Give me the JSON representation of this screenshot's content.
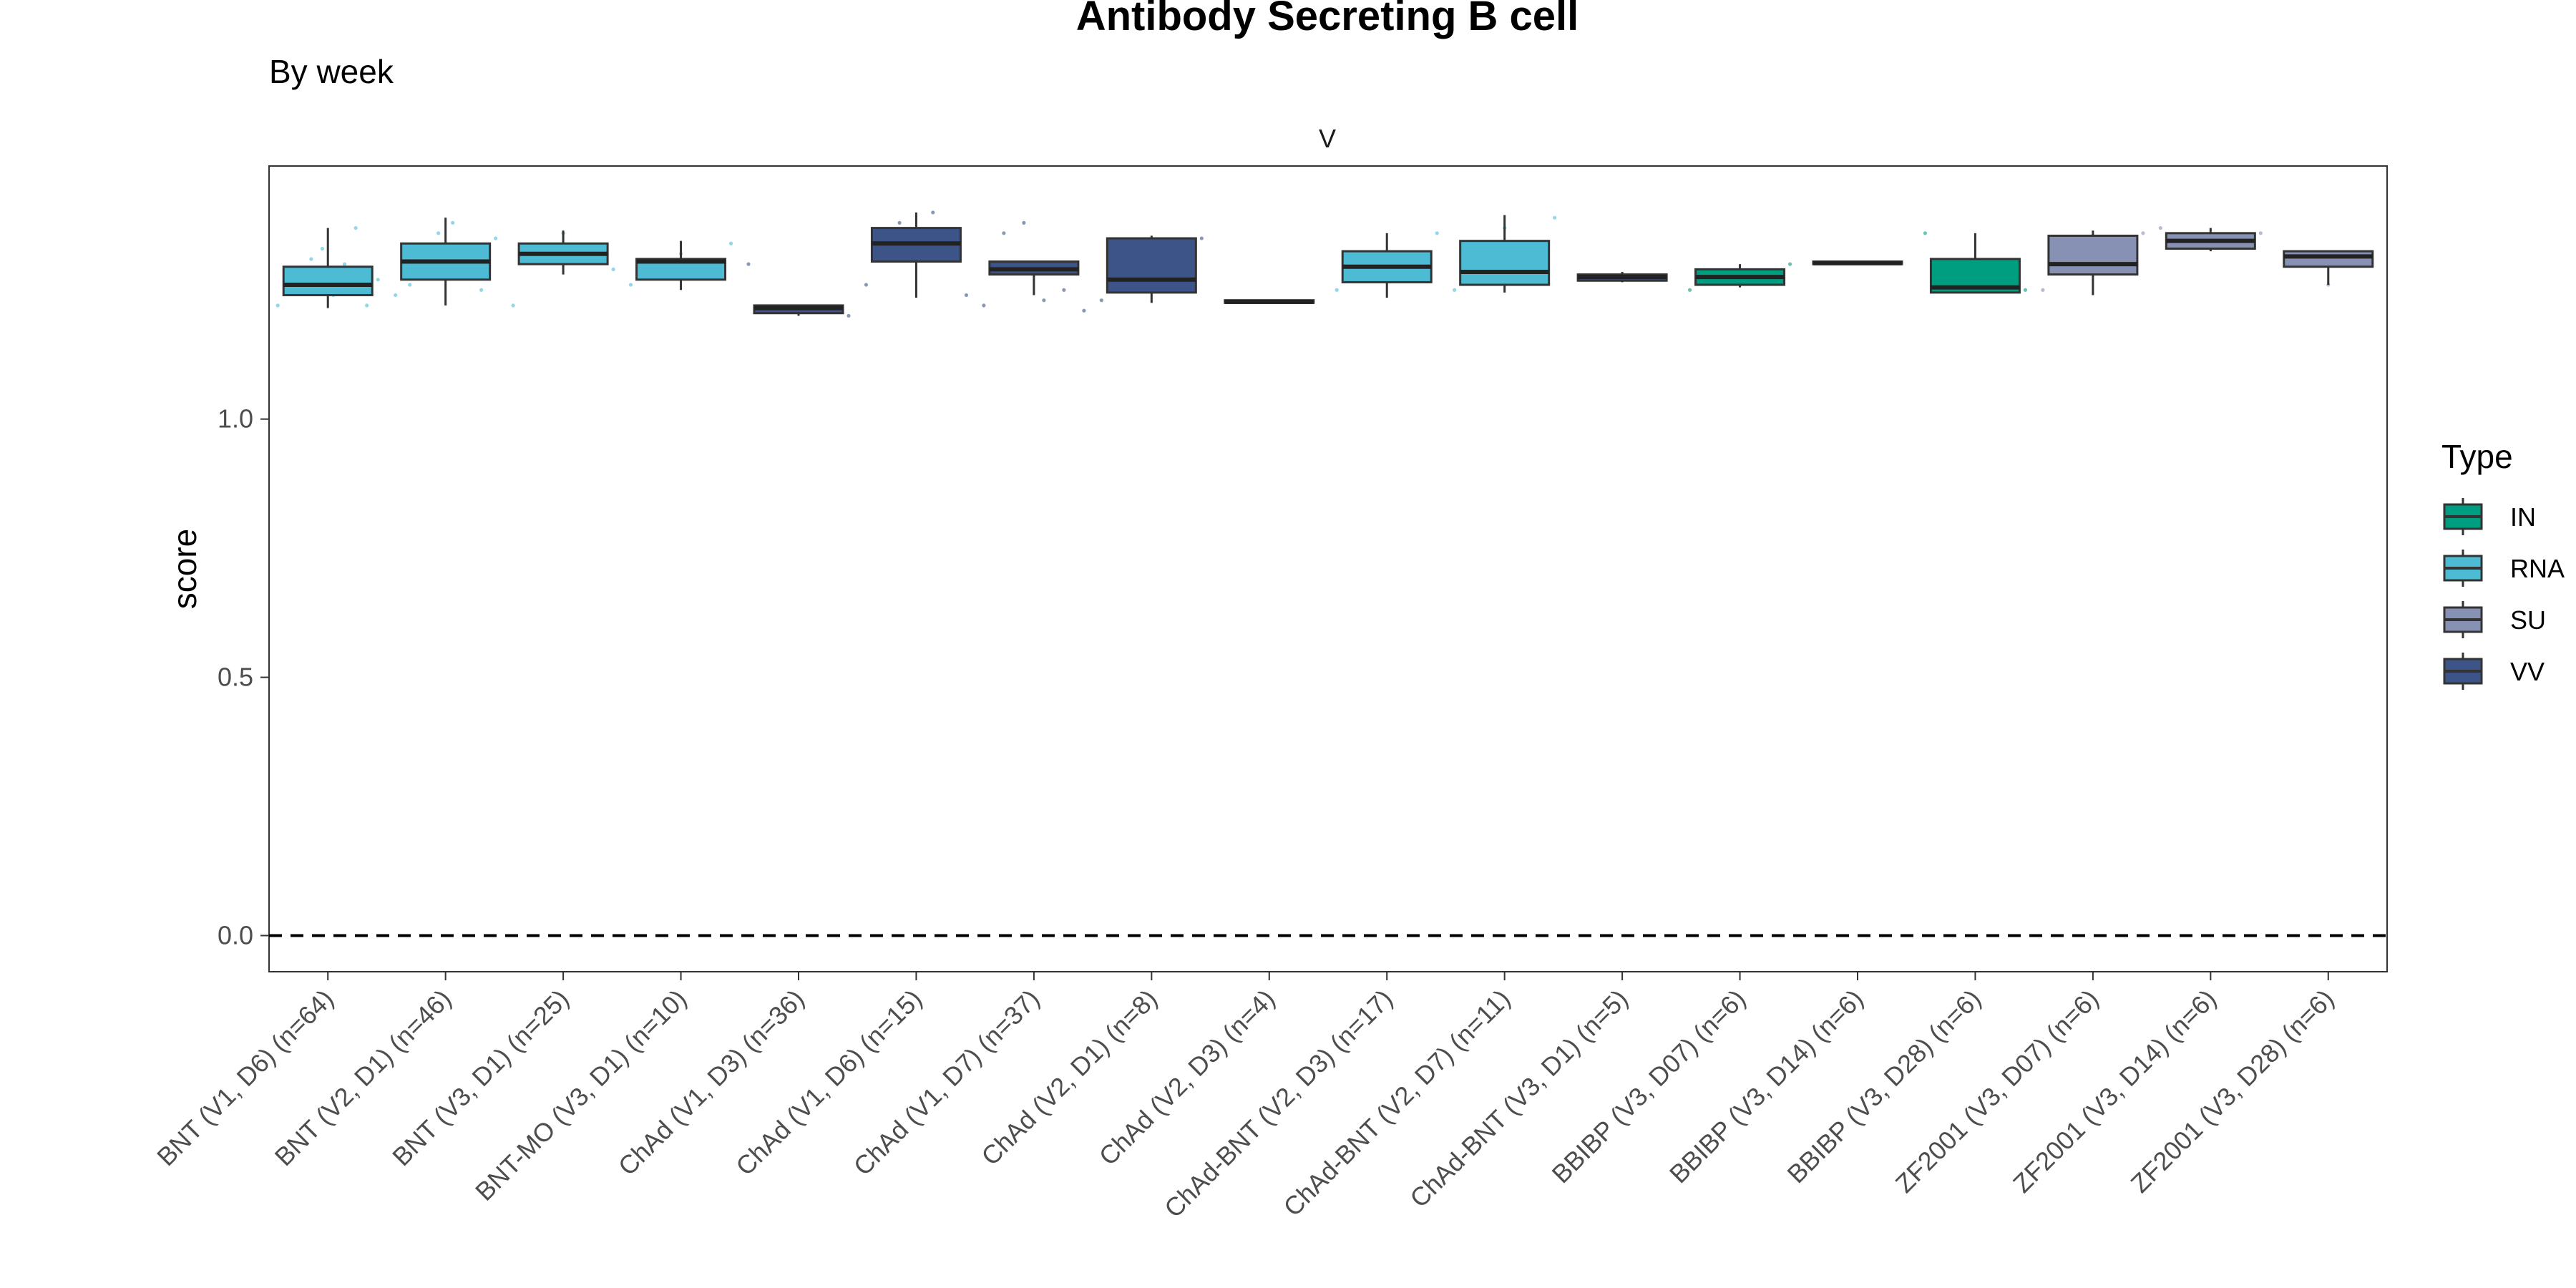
{
  "chart_data": {
    "type": "boxplot",
    "title": "Antibody Secreting B cell",
    "subtitle": "By week",
    "facet_label": "V",
    "ylabel": "score",
    "xlabel": "",
    "ylim": [
      -0.07,
      1.49
    ],
    "yticks": [
      0.0,
      0.5,
      1.0
    ],
    "ytick_labels": [
      "0.0",
      "0.5",
      "1.0"
    ],
    "reference_line": {
      "y": 0,
      "style": "dashed"
    },
    "legend": {
      "title": "Type",
      "placement": "right",
      "entries": [
        {
          "label": "IN",
          "color": "#009E81"
        },
        {
          "label": "RNA",
          "color": "#4EBBD5"
        },
        {
          "label": "SU",
          "color": "#8691B4"
        },
        {
          "label": "VV",
          "color": "#3C5488"
        }
      ]
    },
    "grid": false,
    "categories": [
      "BNT (V1, D6) (n=64)",
      "BNT (V2, D1) (n=46)",
      "BNT (V3, D1) (n=25)",
      "BNT-MO (V3, D1) (n=10)",
      "ChAd (V1, D3) (n=36)",
      "ChAd (V1, D6) (n=15)",
      "ChAd (V1, D7) (n=37)",
      "ChAd (V2, D1) (n=8)",
      "ChAd (V2, D3) (n=4)",
      "ChAd-BNT (V2, D3) (n=17)",
      "ChAd-BNT (V2, D7) (n=11)",
      "ChAd-BNT (V3, D1) (n=5)",
      "BBIBP (V3, D07) (n=6)",
      "BBIBP (V3, D14) (n=6)",
      "BBIBP (V3, D28) (n=6)",
      "ZF2001 (V3, D07) (n=6)",
      "ZF2001 (V3, D14) (n=6)",
      "ZF2001 (V3, D28) (n=6)"
    ],
    "boxes": [
      {
        "type": "RNA",
        "min": 1.215,
        "q1": 1.24,
        "median": 1.26,
        "q3": 1.295,
        "max": 1.37,
        "points": [
          1.22,
          1.25,
          1.28,
          1.31,
          1.33,
          1.24,
          1.3,
          1.37,
          1.22,
          1.27
        ]
      },
      {
        "type": "RNA",
        "min": 1.22,
        "q1": 1.27,
        "median": 1.305,
        "q3": 1.34,
        "max": 1.39,
        "points": [
          1.24,
          1.26,
          1.32,
          1.36,
          1.38,
          1.29,
          1.25,
          1.35
        ]
      },
      {
        "type": "RNA",
        "min": 1.28,
        "q1": 1.3,
        "median": 1.32,
        "q3": 1.34,
        "max": 1.365,
        "points": [
          1.22,
          1.31,
          1.36,
          1.33,
          1.29
        ]
      },
      {
        "type": "RNA",
        "min": 1.25,
        "q1": 1.27,
        "median": 1.305,
        "q3": 1.31,
        "max": 1.345,
        "points": [
          1.26,
          1.32,
          1.34
        ]
      },
      {
        "type": "VV",
        "min": 1.2,
        "q1": 1.205,
        "median": 1.215,
        "q3": 1.22,
        "max": 1.22,
        "points": [
          1.3,
          1.2
        ]
      },
      {
        "type": "VV",
        "min": 1.235,
        "q1": 1.305,
        "median": 1.34,
        "q3": 1.37,
        "max": 1.4,
        "points": [
          1.26,
          1.38,
          1.4,
          1.24
        ]
      },
      {
        "type": "VV",
        "min": 1.24,
        "q1": 1.28,
        "median": 1.29,
        "q3": 1.305,
        "max": 1.305,
        "points": [
          1.22,
          1.36,
          1.38,
          1.23,
          1.25,
          1.21
        ]
      },
      {
        "type": "VV",
        "min": 1.225,
        "q1": 1.245,
        "median": 1.27,
        "q3": 1.35,
        "max": 1.355,
        "points": [
          1.23,
          1.35
        ]
      },
      {
        "type": "VV",
        "min": 1.225,
        "q1": 1.225,
        "median": 1.227,
        "q3": 1.23,
        "max": 1.23,
        "points": []
      },
      {
        "type": "RNA",
        "min": 1.235,
        "q1": 1.265,
        "median": 1.295,
        "q3": 1.325,
        "max": 1.36,
        "points": [
          1.25,
          1.36
        ]
      },
      {
        "type": "RNA",
        "min": 1.245,
        "q1": 1.26,
        "median": 1.285,
        "q3": 1.345,
        "max": 1.395,
        "points": [
          1.25,
          1.37,
          1.39
        ]
      },
      {
        "type": "VV",
        "min": 1.265,
        "q1": 1.268,
        "median": 1.275,
        "q3": 1.28,
        "max": 1.285,
        "points": []
      },
      {
        "type": "IN",
        "min": 1.255,
        "q1": 1.26,
        "median": 1.275,
        "q3": 1.29,
        "max": 1.3,
        "points": [
          1.25,
          1.3
        ]
      },
      {
        "type": "IN",
        "min": 1.3,
        "q1": 1.3,
        "median": 1.302,
        "q3": 1.305,
        "max": 1.305,
        "points": []
      },
      {
        "type": "IN",
        "min": 1.245,
        "q1": 1.245,
        "median": 1.255,
        "q3": 1.31,
        "max": 1.36,
        "points": [
          1.36,
          1.25
        ]
      },
      {
        "type": "SU",
        "min": 1.24,
        "q1": 1.28,
        "median": 1.3,
        "q3": 1.355,
        "max": 1.365,
        "points": [
          1.25,
          1.36
        ]
      },
      {
        "type": "SU",
        "min": 1.325,
        "q1": 1.33,
        "median": 1.345,
        "q3": 1.36,
        "max": 1.37,
        "points": [
          1.37,
          1.36
        ]
      },
      {
        "type": "SU",
        "min": 1.26,
        "q1": 1.295,
        "median": 1.315,
        "q3": 1.325,
        "max": 1.325,
        "points": [
          1.26
        ]
      }
    ]
  }
}
